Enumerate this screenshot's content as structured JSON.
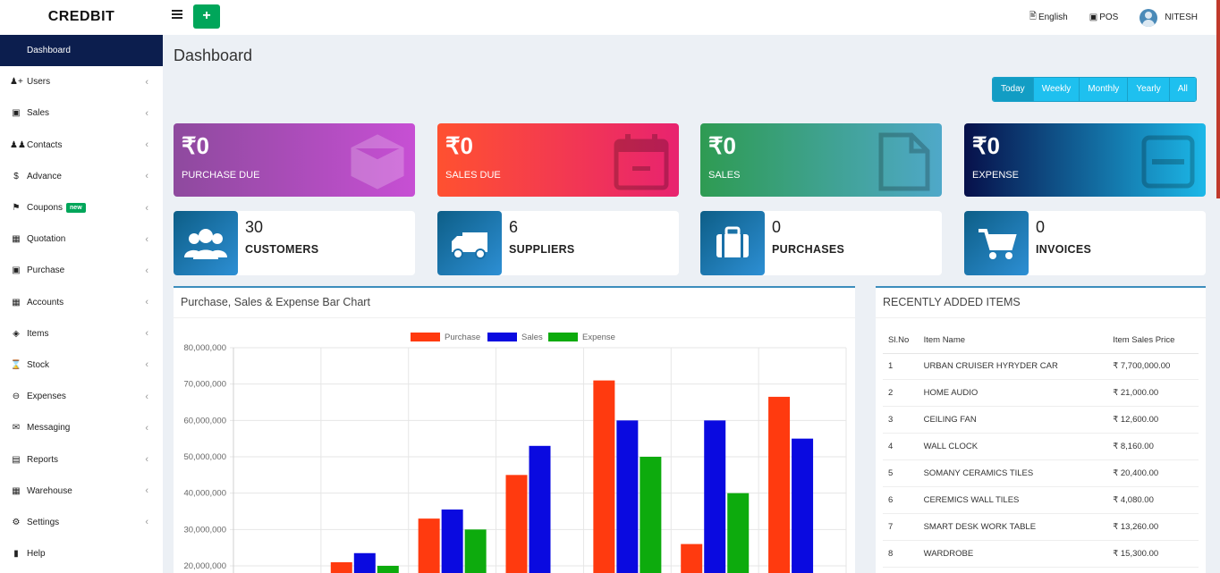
{
  "app": {
    "brand": "CREDBIT"
  },
  "header": {
    "language": "English",
    "pos_label": "POS",
    "user_name": "NITESH"
  },
  "sidebar": {
    "items": [
      {
        "label": "Dashboard",
        "icon": "dashboard-icon",
        "active": true
      },
      {
        "label": "Users",
        "icon": "users-icon"
      },
      {
        "label": "Sales",
        "icon": "cart-icon"
      },
      {
        "label": "Contacts",
        "icon": "contacts-icon"
      },
      {
        "label": "Advance",
        "icon": "dollar-icon"
      },
      {
        "label": "Coupons",
        "icon": "tag-icon",
        "badge": "new"
      },
      {
        "label": "Quotation",
        "icon": "calendar-icon"
      },
      {
        "label": "Purchase",
        "icon": "cube-icon"
      },
      {
        "label": "Accounts",
        "icon": "grid-icon"
      },
      {
        "label": "Items",
        "icon": "cubes-icon"
      },
      {
        "label": "Stock",
        "icon": "hourglass-icon"
      },
      {
        "label": "Expenses",
        "icon": "minus-circle-icon"
      },
      {
        "label": "Messaging",
        "icon": "envelope-icon"
      },
      {
        "label": "Reports",
        "icon": "bar-chart-icon"
      },
      {
        "label": "Warehouse",
        "icon": "building-icon"
      },
      {
        "label": "Settings",
        "icon": "cogs-icon"
      },
      {
        "label": "Help",
        "icon": "book-icon"
      }
    ]
  },
  "main": {
    "title": "Dashboard",
    "ranges": [
      "Today",
      "Weekly",
      "Monthly",
      "Yearly",
      "All"
    ],
    "active_range": "Today",
    "cards": [
      {
        "amount": "₹0",
        "label": "PURCHASE DUE",
        "icon": "cube-icon"
      },
      {
        "amount": "₹0",
        "label": "SALES DUE",
        "icon": "calendar-icon"
      },
      {
        "amount": "₹0",
        "label": "SALES",
        "icon": "file-icon"
      },
      {
        "amount": "₹0",
        "label": "EXPENSE",
        "icon": "minus-square-icon"
      }
    ],
    "info_boxes": [
      {
        "value": "30",
        "label": "CUSTOMERS",
        "icon": "users-icon"
      },
      {
        "value": "6",
        "label": "SUPPLIERS",
        "icon": "truck-icon"
      },
      {
        "value": "0",
        "label": "PURCHASES",
        "icon": "suitcase-icon"
      },
      {
        "value": "0",
        "label": "INVOICES",
        "icon": "shopping-cart-icon"
      }
    ],
    "chart_panel": {
      "title": "Purchase, Sales & Expense Bar Chart"
    },
    "items_panel": {
      "title": "RECENTLY ADDED ITEMS",
      "columns": [
        "Sl.No",
        "Item Name",
        "Item Sales Price"
      ],
      "rows": [
        [
          "1",
          "URBAN CRUISER HYRYDER CAR",
          "₹ 7,700,000.00"
        ],
        [
          "2",
          "HOME AUDIO",
          "₹ 21,000.00"
        ],
        [
          "3",
          "CEILING FAN",
          "₹ 12,600.00"
        ],
        [
          "4",
          "WALL CLOCK",
          "₹ 8,160.00"
        ],
        [
          "5",
          "SOMANY CERAMICS TILES",
          "₹ 20,400.00"
        ],
        [
          "6",
          "CEREMICS WALL TILES",
          "₹ 4,080.00"
        ],
        [
          "7",
          "SMART DESK WORK TABLE",
          "₹ 13,260.00"
        ],
        [
          "8",
          "WARDROBE",
          "₹ 15,300.00"
        ]
      ]
    }
  },
  "chart_data": {
    "type": "bar",
    "title": "Purchase, Sales & Expense Bar Chart",
    "legend_position": "top",
    "categories": [
      "",
      "",
      "",
      "",
      "",
      "",
      ""
    ],
    "series": [
      {
        "name": "Purchase",
        "color": "#ff3a0f",
        "values": [
          0,
          21000000,
          33000000,
          45000000,
          71000000,
          26000000,
          66500000
        ]
      },
      {
        "name": "Sales",
        "color": "#0a0ae0",
        "values": [
          0,
          23500000,
          35500000,
          53000000,
          60000000,
          60000000,
          55000000
        ]
      },
      {
        "name": "Expense",
        "color": "#0dab0d",
        "values": [
          0,
          20000000,
          30000000,
          0,
          50000000,
          40000000,
          0
        ]
      }
    ],
    "ylim": [
      0,
      80000000
    ],
    "y_ticks": [
      "80,000,000",
      "70,000,000",
      "60,000,000",
      "50,000,000",
      "40,000,000",
      "30,000,000",
      "20,000,000"
    ],
    "grid": true
  }
}
